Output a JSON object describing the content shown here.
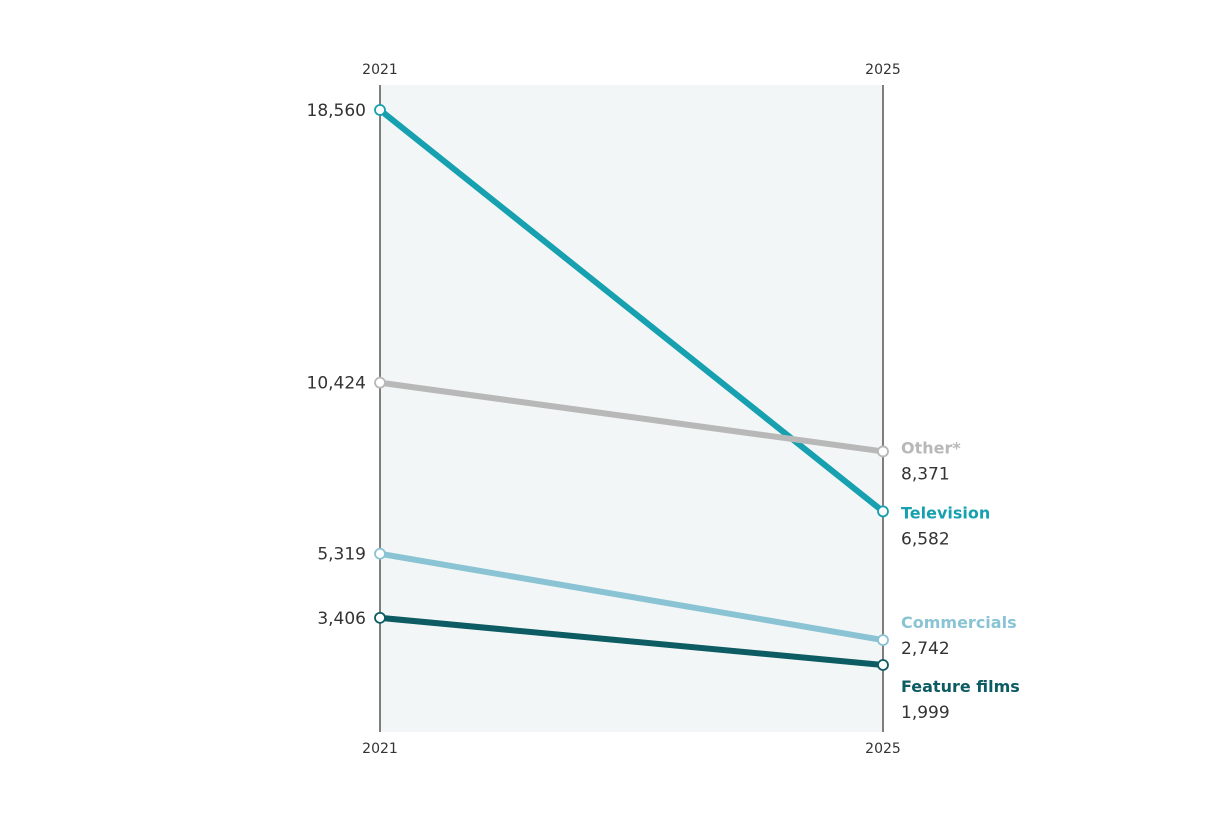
{
  "chart_data": {
    "type": "line",
    "chart_style": "slope",
    "x": [
      "2021",
      "2025"
    ],
    "axis_labels": {
      "top": [
        "2021",
        "2025"
      ],
      "bottom": [
        "2021",
        "2025"
      ]
    },
    "series": [
      {
        "name": "Television",
        "values": [
          18560,
          6582
        ],
        "labels": [
          "18,560",
          "6,582"
        ],
        "color": "#16a0b0"
      },
      {
        "name": "Other*",
        "values": [
          10424,
          8371
        ],
        "labels": [
          "10,424",
          "8,371"
        ],
        "color": "#b8b8b8"
      },
      {
        "name": "Commercials",
        "values": [
          5319,
          2742
        ],
        "labels": [
          "5,319",
          "2,742"
        ],
        "color": "#8ac4d4"
      },
      {
        "name": "Feature films",
        "values": [
          3406,
          1999
        ],
        "labels": [
          "3,406",
          "1,999"
        ],
        "color": "#0d5c63"
      }
    ],
    "ylim": [
      0,
      19500
    ],
    "grid": false,
    "legend": "direct labels at right end",
    "background_band_color": "#f3f6f6",
    "axis_line_color": "#555555"
  }
}
